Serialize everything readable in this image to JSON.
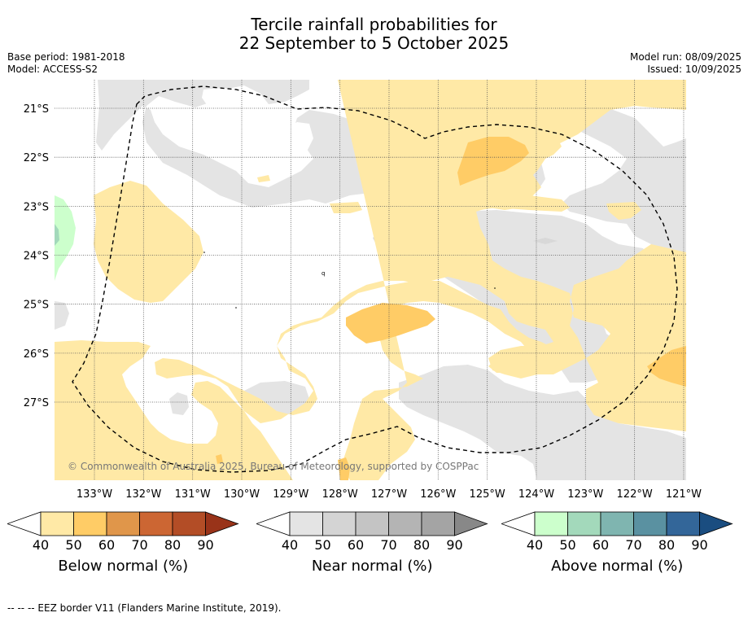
{
  "title": {
    "line1": "Tercile rainfall probabilities for",
    "line2": "22 September to 5 October 2025"
  },
  "meta": {
    "base_period": "Base period: 1981-2018",
    "model": "Model: ACCESS-S2",
    "model_run": "Model run: 08/09/2025",
    "issued": "Issued: 10/09/2025"
  },
  "map": {
    "lon_labels": [
      "133°W",
      "132°W",
      "131°W",
      "130°W",
      "129°W",
      "128°W",
      "127°W",
      "126°W",
      "125°W",
      "124°W",
      "123°W",
      "122°W",
      "121°W"
    ],
    "lat_labels": [
      "21°S",
      "22°S",
      "23°S",
      "24°S",
      "25°S",
      "26°S",
      "27°S"
    ],
    "copyright": "© Commonwealth of Australia 2025, Bureau of Meteorology, supported by COSPPac",
    "colors": {
      "below_40": "#ffe9a6",
      "below_50": "#ffcc66",
      "near_40": "#e4e4e4",
      "above_40": "#ccffcc",
      "above_50": "#a3d9bb"
    }
  },
  "colorbars": [
    {
      "label": "Below normal (%)",
      "ticks": [
        "40",
        "50",
        "60",
        "70",
        "80",
        "90"
      ],
      "colors": [
        "#ffe9a6",
        "#ffcc66",
        "#e0964a",
        "#cc6633",
        "#b34d26",
        "#993319"
      ]
    },
    {
      "label": "Near normal (%)",
      "ticks": [
        "40",
        "50",
        "60",
        "70",
        "80",
        "90"
      ],
      "colors": [
        "#e4e4e4",
        "#d4d4d4",
        "#c4c4c4",
        "#b4b4b4",
        "#a4a4a4",
        "#888888"
      ]
    },
    {
      "label": "Above normal (%)",
      "ticks": [
        "40",
        "50",
        "60",
        "70",
        "80",
        "90"
      ],
      "colors": [
        "#ccffcc",
        "#a3d9bb",
        "#7fb5b0",
        "#5a91a1",
        "#336699",
        "#1a4d80"
      ]
    }
  ],
  "footer": "--  --  -- EEZ border V11 (Flanders Marine Institute, 2019)."
}
